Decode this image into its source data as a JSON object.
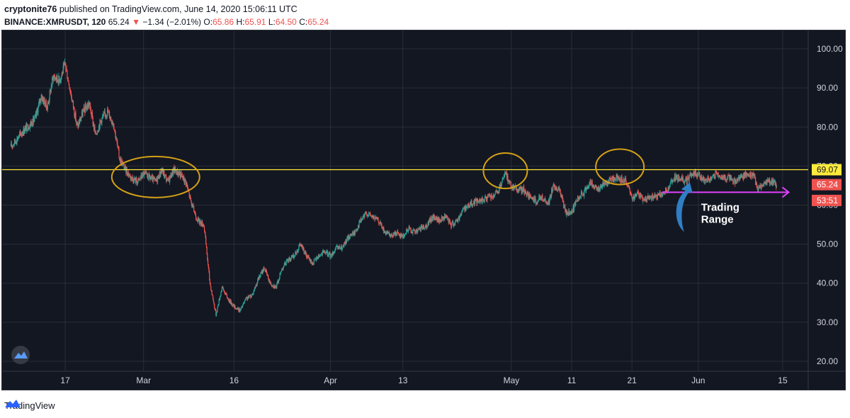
{
  "header": {
    "author": "cryptonite76",
    "published_text": "published on TradingView.com, June 14, 2020 15:06:11 UTC",
    "symbol": "BINANCE:XMRUSDT, 120",
    "last": "65.24",
    "change_arrow": "▼",
    "change": "−1.34 (−2.01%)",
    "o_label": "O:",
    "o": "65.86",
    "h_label": "H:",
    "h": "65.91",
    "l_label": "L:",
    "l": "64.50",
    "c_label": "C:",
    "c": "65.24"
  },
  "footer": {
    "brand": "TradingView",
    "logo_icon": "tradingview-logo-icon"
  },
  "colors": {
    "background": "#131722",
    "grid": "#2a2e39",
    "up": "#26a69a",
    "down": "#ef5350",
    "resistance": "#ffeb3b",
    "ellipse": "#d4a017",
    "range_arrow": "#e040fb",
    "callout_arrow": "#2f7fc4"
  },
  "chart_data": {
    "type": "candlestick",
    "x_axis": {
      "ticks": [
        "17",
        "Mar",
        "16",
        "Apr",
        "13",
        "May",
        "11",
        "21",
        "Jun",
        "15"
      ],
      "range": [
        "2020-02-07",
        "2020-06-19"
      ]
    },
    "y_axis": {
      "ticks": [
        "20.00",
        "30.00",
        "40.00",
        "50.00",
        "60.00",
        "70.00",
        "80.00",
        "90.00",
        "100.00"
      ],
      "range": [
        18,
        104
      ],
      "position": "right"
    },
    "price_points": [
      [
        "2020-02-08",
        75
      ],
      [
        "2020-02-10",
        79
      ],
      [
        "2020-02-12",
        82
      ],
      [
        "2020-02-13",
        88
      ],
      [
        "2020-02-14",
        85
      ],
      [
        "2020-02-15",
        93
      ],
      [
        "2020-02-16",
        92
      ],
      [
        "2020-02-17",
        96
      ],
      [
        "2020-02-18",
        88
      ],
      [
        "2020-02-19",
        80
      ],
      [
        "2020-02-20",
        84
      ],
      [
        "2020-02-21",
        86
      ],
      [
        "2020-02-22",
        78
      ],
      [
        "2020-02-23",
        82
      ],
      [
        "2020-02-24",
        84
      ],
      [
        "2020-02-25",
        81
      ],
      [
        "2020-02-26",
        72
      ],
      [
        "2020-02-27",
        69
      ],
      [
        "2020-02-28",
        67
      ],
      [
        "2020-02-29",
        66
      ],
      [
        "2020-03-01",
        68
      ],
      [
        "2020-03-02",
        67
      ],
      [
        "2020-03-03",
        66
      ],
      [
        "2020-03-04",
        69
      ],
      [
        "2020-03-05",
        66
      ],
      [
        "2020-03-06",
        69
      ],
      [
        "2020-03-07",
        68
      ],
      [
        "2020-03-08",
        66
      ],
      [
        "2020-03-09",
        60
      ],
      [
        "2020-03-10",
        56
      ],
      [
        "2020-03-11",
        55
      ],
      [
        "2020-03-12",
        40
      ],
      [
        "2020-03-13",
        32
      ],
      [
        "2020-03-14",
        39
      ],
      [
        "2020-03-15",
        36
      ],
      [
        "2020-03-16",
        34
      ],
      [
        "2020-03-17",
        33
      ],
      [
        "2020-03-18",
        36
      ],
      [
        "2020-03-19",
        37
      ],
      [
        "2020-03-20",
        41
      ],
      [
        "2020-03-21",
        44
      ],
      [
        "2020-03-22",
        40
      ],
      [
        "2020-03-23",
        39
      ],
      [
        "2020-03-24",
        44
      ],
      [
        "2020-03-25",
        46
      ],
      [
        "2020-03-26",
        47
      ],
      [
        "2020-03-27",
        50
      ],
      [
        "2020-03-28",
        47
      ],
      [
        "2020-03-29",
        45
      ],
      [
        "2020-03-30",
        47
      ],
      [
        "2020-03-31",
        48
      ],
      [
        "2020-04-01",
        47
      ],
      [
        "2020-04-02",
        49
      ],
      [
        "2020-04-03",
        49
      ],
      [
        "2020-04-04",
        52
      ],
      [
        "2020-04-05",
        53
      ],
      [
        "2020-04-06",
        56
      ],
      [
        "2020-04-07",
        58
      ],
      [
        "2020-04-08",
        57
      ],
      [
        "2020-04-09",
        56
      ],
      [
        "2020-04-10",
        53
      ],
      [
        "2020-04-11",
        52
      ],
      [
        "2020-04-12",
        53
      ],
      [
        "2020-04-13",
        52
      ],
      [
        "2020-04-14",
        54
      ],
      [
        "2020-04-15",
        53
      ],
      [
        "2020-04-16",
        54
      ],
      [
        "2020-04-17",
        55
      ],
      [
        "2020-04-18",
        57
      ],
      [
        "2020-04-19",
        56
      ],
      [
        "2020-04-20",
        57
      ],
      [
        "2020-04-21",
        55
      ],
      [
        "2020-04-22",
        56
      ],
      [
        "2020-04-23",
        59
      ],
      [
        "2020-04-24",
        60
      ],
      [
        "2020-04-25",
        61
      ],
      [
        "2020-04-26",
        61
      ],
      [
        "2020-04-27",
        62
      ],
      [
        "2020-04-28",
        62
      ],
      [
        "2020-04-29",
        64
      ],
      [
        "2020-04-30",
        68
      ],
      [
        "2020-05-01",
        65
      ],
      [
        "2020-05-02",
        64
      ],
      [
        "2020-05-03",
        64
      ],
      [
        "2020-05-04",
        62
      ],
      [
        "2020-05-05",
        61
      ],
      [
        "2020-05-06",
        62
      ],
      [
        "2020-05-07",
        60
      ],
      [
        "2020-05-08",
        65
      ],
      [
        "2020-05-09",
        64
      ],
      [
        "2020-05-10",
        58
      ],
      [
        "2020-05-11",
        58
      ],
      [
        "2020-05-12",
        62
      ],
      [
        "2020-05-13",
        63
      ],
      [
        "2020-05-14",
        66
      ],
      [
        "2020-05-15",
        64
      ],
      [
        "2020-05-16",
        65
      ],
      [
        "2020-05-17",
        66
      ],
      [
        "2020-05-18",
        67
      ],
      [
        "2020-05-19",
        67
      ],
      [
        "2020-05-20",
        66
      ],
      [
        "2020-05-21",
        62
      ],
      [
        "2020-05-22",
        63
      ],
      [
        "2020-05-23",
        61
      ],
      [
        "2020-05-24",
        62
      ],
      [
        "2020-05-25",
        62
      ],
      [
        "2020-05-26",
        63
      ],
      [
        "2020-05-27",
        64
      ],
      [
        "2020-05-28",
        67
      ],
      [
        "2020-05-29",
        67
      ],
      [
        "2020-05-30",
        66
      ],
      [
        "2020-05-31",
        68
      ],
      [
        "2020-06-01",
        68
      ],
      [
        "2020-06-02",
        66
      ],
      [
        "2020-06-03",
        67
      ],
      [
        "2020-06-04",
        68
      ],
      [
        "2020-06-05",
        67
      ],
      [
        "2020-06-06",
        67
      ],
      [
        "2020-06-07",
        66
      ],
      [
        "2020-06-08",
        67
      ],
      [
        "2020-06-09",
        68
      ],
      [
        "2020-06-10",
        68
      ],
      [
        "2020-06-11",
        64
      ],
      [
        "2020-06-12",
        66
      ],
      [
        "2020-06-13",
        66
      ],
      [
        "2020-06-14",
        65.24
      ]
    ],
    "resistance_line": {
      "value": 69.07,
      "label": "69.07"
    },
    "price_labels": [
      {
        "text": "65.24",
        "value": 65.24
      },
      {
        "text": "53:51",
        "value": 61.2
      }
    ],
    "range_arrow": {
      "x_start": "2020-05-26",
      "x_end": "2020-06-16",
      "value": 63.3
    },
    "circled_zones": [
      {
        "x_center": "2020-03-03",
        "value": 67.2
      },
      {
        "x_center": "2020-04-30",
        "value": 68.8
      },
      {
        "x_center": "2020-05-19",
        "value": 69.8
      }
    ],
    "annotation": {
      "line1": "Trading",
      "line2": "Range",
      "x": "2020-06-01",
      "value": 57.5
    }
  }
}
